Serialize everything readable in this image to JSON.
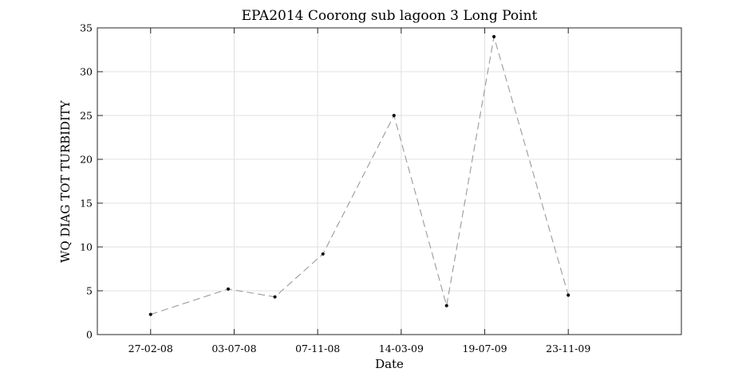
{
  "chart_data": {
    "type": "line",
    "title": "EPA2014 Coorong sub lagoon 3 Long Point",
    "xlabel": "Date",
    "ylabel": "WQ DIAG TOT TURBIDITY",
    "xlim": [
      "2007-12-08",
      "2010-05-14"
    ],
    "ylim": [
      0,
      35
    ],
    "grid": true,
    "x_ticks": [
      {
        "date": "2008-02-27",
        "label": "27-02-08"
      },
      {
        "date": "2008-07-03",
        "label": "03-07-08"
      },
      {
        "date": "2008-11-07",
        "label": "07-11-08"
      },
      {
        "date": "2009-03-14",
        "label": "14-03-09"
      },
      {
        "date": "2009-07-19",
        "label": "19-07-09"
      },
      {
        "date": "2009-11-23",
        "label": "23-11-09"
      }
    ],
    "y_ticks": [
      0,
      5,
      10,
      15,
      20,
      25,
      30,
      35
    ],
    "series": [
      {
        "color": "#9a9a9a",
        "marker_color": "#111111",
        "line_style": "dashed",
        "points": [
          {
            "x": "2008-02-27",
            "y": 2.3
          },
          {
            "x": "2008-06-24",
            "y": 5.2
          },
          {
            "x": "2008-09-03",
            "y": 4.3
          },
          {
            "x": "2008-11-15",
            "y": 9.2
          },
          {
            "x": "2009-03-03",
            "y": 25.0
          },
          {
            "x": "2009-05-22",
            "y": 3.3
          },
          {
            "x": "2009-08-02",
            "y": 34.0
          },
          {
            "x": "2009-11-23",
            "y": 4.5
          }
        ]
      }
    ]
  }
}
